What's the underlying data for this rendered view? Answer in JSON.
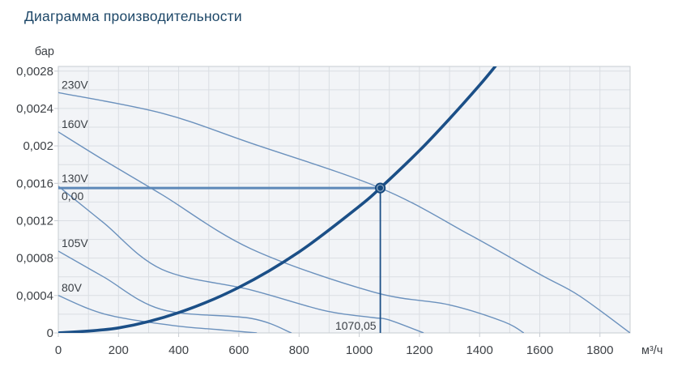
{
  "chart_data": {
    "type": "line",
    "title": "Диаграмма производительности",
    "ylabel": "бар",
    "xlabel": "м³/ч",
    "xlim": [
      0,
      1900
    ],
    "ylim": [
      0,
      0.00285
    ],
    "grid": {
      "x_step": 100,
      "y_step": 0.0002,
      "visible": true
    },
    "x_ticks": [
      0,
      200,
      400,
      600,
      800,
      1000,
      1200,
      1400,
      1600,
      1800
    ],
    "x_tick_labels": [
      "0",
      "200",
      "400",
      "600",
      "800",
      "1000",
      "1200",
      "1400",
      "1600",
      "1800"
    ],
    "y_ticks": [
      0,
      0.0004,
      0.0008,
      0.0012,
      0.0016,
      0.002,
      0.0024,
      0.0028
    ],
    "y_tick_labels": [
      "0",
      "0,0004",
      "0,0008",
      "0,0012",
      "0,0016",
      "0,002",
      "0,0024",
      "0,0028"
    ],
    "legend_position": "labels-on-curves",
    "series": [
      {
        "id": "230V",
        "label": "230V",
        "points": [
          [
            0,
            0.00257
          ],
          [
            344,
            0.00235
          ],
          [
            640,
            0.00203
          ],
          [
            1070.05,
            0.00155
          ],
          [
            1367,
            0.00105
          ],
          [
            1604,
            0.00062
          ],
          [
            1730,
            0.0004
          ],
          [
            1900,
            0
          ]
        ]
      },
      {
        "id": "160V",
        "label": "160V",
        "points": [
          [
            0,
            0.00215
          ],
          [
            150,
            0.00185
          ],
          [
            344,
            0.00148
          ],
          [
            640,
            0.0009
          ],
          [
            1044,
            0.00044
          ],
          [
            1300,
            0.0003
          ],
          [
            1480,
            0.00012
          ],
          [
            1547,
            0
          ]
        ]
      },
      {
        "id": "130V",
        "label": "130V",
        "points": [
          [
            0,
            0.00157
          ],
          [
            150,
            0.00118
          ],
          [
            344,
            0.00068
          ],
          [
            640,
            0.00046
          ],
          [
            883,
            0.00024
          ],
          [
            1044,
            0.000165
          ],
          [
            1098,
            0.00014
          ],
          [
            1214,
            0
          ]
        ]
      },
      {
        "id": "105V",
        "label": "105V",
        "points": [
          [
            0,
            0.000875
          ],
          [
            150,
            0.0006
          ],
          [
            344,
            0.00025
          ],
          [
            640,
            0.000156
          ],
          [
            775,
            0
          ]
        ]
      },
      {
        "id": "80V",
        "label": "80V",
        "points": [
          [
            0,
            0.0004
          ],
          [
            156,
            0.0002
          ],
          [
            380,
            8e-05
          ],
          [
            533,
            3.5e-05
          ],
          [
            660,
            0
          ]
        ]
      }
    ],
    "system_curve": {
      "points": [
        [
          0,
          0
        ],
        [
          200,
          5.4e-05
        ],
        [
          400,
          0.000217
        ],
        [
          600,
          0.000487
        ],
        [
          800,
          0.000866
        ],
        [
          1000,
          0.001354
        ],
        [
          1070.05,
          0.00155
        ],
        [
          1200,
          0.00195
        ],
        [
          1300,
          0.00229
        ],
        [
          1400,
          0.00265
        ],
        [
          1452,
          0.00285
        ]
      ]
    },
    "operating_point": {
      "flow": 1070.05,
      "pressure": 0.00155,
      "flow_label": "1070,05",
      "pressure_label": "0,00"
    },
    "colors": {
      "title": "#1d4768",
      "plot_bg": "#f2f4f7",
      "grid": "#dadee3",
      "border": "#c7ccd2",
      "tick_text": "#3d4146",
      "fan_curve": "#6b91bd",
      "curve_label": "#3a3f45",
      "system_curve": "#1b4f87",
      "op_h_line": "#5d88b8",
      "op_v_line": "#1b4f87",
      "marker": "#16497e"
    }
  }
}
